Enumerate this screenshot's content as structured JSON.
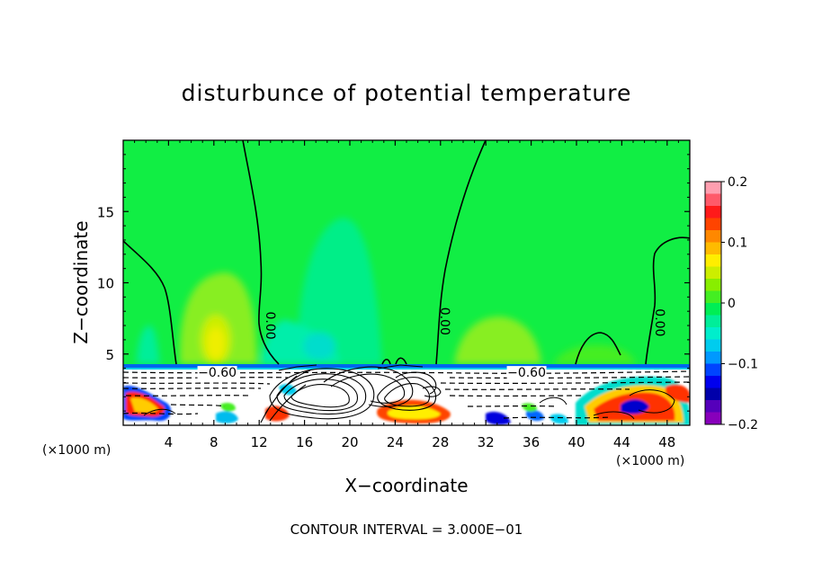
{
  "chart_data": {
    "type": "heatmap",
    "title": "disturbunce of potential temperature",
    "xlabel": "X−coordinate",
    "ylabel": "Z−coordinate",
    "x_unit": "(×1000 m)",
    "x_unit_right": "(×1000 m)",
    "xlim": [
      0,
      50
    ],
    "ylim": [
      0,
      20
    ],
    "x_ticks": [
      4,
      8,
      12,
      16,
      20,
      24,
      28,
      32,
      36,
      40,
      44,
      48
    ],
    "y_ticks": [
      5,
      10,
      15
    ],
    "x_tick_labels": [
      "4",
      "8",
      "12",
      "16",
      "20",
      "24",
      "28",
      "32",
      "36",
      "40",
      "44",
      "48"
    ],
    "y_tick_labels": [
      "5",
      "10",
      "15"
    ],
    "contour_interval_text": "CONTOUR INTERVAL = 3.000E−01",
    "contour_labels": [
      {
        "text": "0.00",
        "x": 12.6,
        "z": 7.0,
        "rotate": 90
      },
      {
        "text": "0.00",
        "x": 28.0,
        "z": 7.3,
        "rotate": 90
      },
      {
        "text": "0.00",
        "x": 47.0,
        "z": 7.2,
        "rotate": 90
      },
      {
        "text": "−0.60",
        "x": 8.3,
        "z": 3.4,
        "rotate": 0
      },
      {
        "text": "−0.60",
        "x": 35.6,
        "z": 3.4,
        "rotate": 0
      }
    ],
    "colorbar": {
      "range": [
        -0.2,
        0.2
      ],
      "tick_values": [
        0.2,
        0.1,
        0,
        -0.1,
        -0.2
      ],
      "tick_labels": [
        "0.2",
        "0.1",
        "0",
        "−0.1",
        "−0.2"
      ],
      "colors": [
        "#ff9fb0",
        "#ff5a6a",
        "#ff1a1a",
        "#ff4400",
        "#ff8800",
        "#ffbb00",
        "#ffee00",
        "#ccee00",
        "#88ee00",
        "#44ee22",
        "#00ee55",
        "#00ee99",
        "#00eecc",
        "#00ccee",
        "#0099ff",
        "#0044ff",
        "#0000ee",
        "#0000aa",
        "#5500bb",
        "#8800bb"
      ]
    },
    "grid": false
  }
}
